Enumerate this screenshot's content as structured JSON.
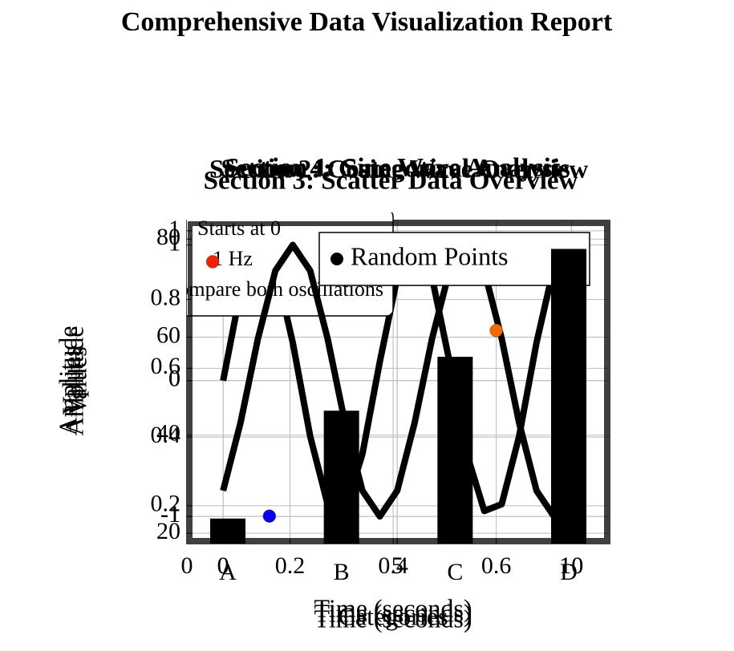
{
  "page_title": "Comprehensive Data Visualization Report",
  "chart_data": [
    {
      "type": "line",
      "title": "Section 1: Sine Wave Analysis",
      "xlabel": "Time (seconds)",
      "ylabel": "Amplitude",
      "x": [
        0,
        0.5,
        1,
        1.5,
        2,
        2.5,
        3,
        3.5,
        4,
        4.5,
        5,
        5.5,
        6,
        6.5,
        7,
        7.5,
        8,
        8.5,
        9,
        9.5,
        10
      ],
      "series": [
        {
          "color": "#000000",
          "values": [
            0,
            0.66,
            0.99,
            0.84,
            0.28,
            -0.41,
            -0.91,
            -0.96,
            -0.54,
            0.14,
            0.76,
            1.0,
            0.76,
            0.14,
            -0.54,
            -0.96,
            -0.91,
            -0.41,
            0.28,
            0.84,
            0.99
          ]
        }
      ],
      "notes": [
        "Starts at 0",
        "1 Hz",
        "Compare both oscillations"
      ],
      "xlim": [
        -1.04,
        11.1
      ],
      "ylim": [
        -1.2,
        1.18
      ],
      "xticks": [
        0,
        5,
        10
      ],
      "yticks": [
        -1,
        0,
        1
      ],
      "grid": true
    },
    {
      "type": "line",
      "title": "Section 2: Cosine Wave Overview",
      "xlabel": "Time (seconds)",
      "ylabel": "Amplitude",
      "x": [
        0,
        0.5,
        1,
        1.5,
        2,
        2.5,
        3,
        3.5,
        4,
        4.5,
        5,
        5.5,
        6,
        6.5,
        7,
        7.5,
        8,
        8.5,
        9,
        9.5,
        10
      ],
      "series": [
        {
          "color": "#000000",
          "values": [
            -0.81,
            -0.31,
            0.31,
            0.81,
            1,
            0.81,
            0.31,
            -0.31,
            -0.81,
            -1,
            -0.81,
            -0.31,
            0.31,
            0.81,
            1,
            0.81,
            0.31,
            -0.31,
            -0.81,
            -1,
            -0.81
          ]
        }
      ],
      "xlim": [
        -1.04,
        11.1
      ],
      "ylim": [
        -1.2,
        1.18
      ],
      "xticks": [
        0,
        5,
        10
      ],
      "yticks": [
        -1,
        0,
        1
      ],
      "grid": true
    },
    {
      "type": "scatter",
      "title": "Section 3: Scatter Data Overview",
      "xlabel": "Time (seconds)",
      "ylabel": "Values",
      "series": [
        {
          "name": "Random Points",
          "color": "#000000",
          "x": [
            0.05,
            0.16,
            0.6
          ],
          "values": [
            0.91,
            0.17,
            0.71
          ],
          "point_colors": [
            "#ee2200",
            "#0a00ee",
            "#f26b00"
          ]
        }
      ],
      "xlim": [
        0,
        0.82
      ],
      "ylim": [
        0.09,
        1.03
      ],
      "xticks": [
        0,
        0.2,
        0.4,
        0.6
      ],
      "yticks": [
        0.2,
        0.4,
        0.6,
        0.8,
        1
      ],
      "grid": true
    },
    {
      "type": "bar",
      "title": "Section 4: Categorical Analysis",
      "xlabel": "Categories",
      "ylabel": "Values",
      "categories": [
        "A",
        "B",
        "C",
        "D"
      ],
      "values": [
        23,
        45,
        56,
        78
      ],
      "color": "#000000",
      "ylim": [
        17.9,
        83.8
      ],
      "yticks": [
        20,
        40,
        60,
        80
      ],
      "grid": true
    }
  ]
}
